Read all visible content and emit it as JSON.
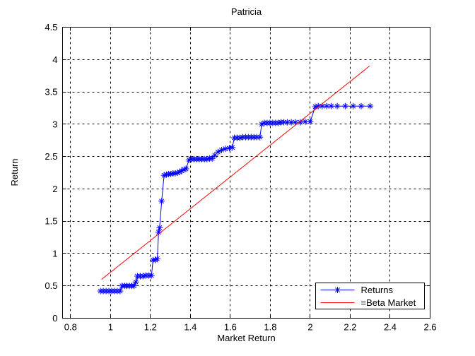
{
  "title": "Patricia",
  "chart_data": {
    "type": "line",
    "title": "Patricia",
    "xlabel": "Market Return",
    "ylabel": "Return",
    "xlim": [
      0.76,
      2.6
    ],
    "ylim": [
      0,
      4.5
    ],
    "xticks": [
      0.8,
      1.0,
      1.2,
      1.4,
      1.6,
      1.8,
      2.0,
      2.2,
      2.4,
      2.6
    ],
    "xtick_labels": [
      "0.8",
      "1",
      "1.2",
      "1.4",
      "1.6",
      "1.8",
      "2",
      "2.2",
      "2.4",
      "2.6"
    ],
    "yticks": [
      0,
      0.5,
      1.0,
      1.5,
      2.0,
      2.5,
      3.0,
      3.5,
      4.0,
      4.5
    ],
    "ytick_labels": [
      "0",
      "0.5",
      "1",
      "1.5",
      "2",
      "2.5",
      "3",
      "3.5",
      "4",
      "4.5"
    ],
    "grid": true,
    "legend_position": "lower-right",
    "series": [
      {
        "name": "Returns",
        "color": "#0000FF",
        "marker": "asterisk",
        "points": [
          [
            0.95,
            0.42
          ],
          [
            0.964,
            0.42
          ],
          [
            0.978,
            0.42
          ],
          [
            0.992,
            0.42
          ],
          [
            1.006,
            0.42
          ],
          [
            1.02,
            0.42
          ],
          [
            1.034,
            0.42
          ],
          [
            1.048,
            0.42
          ],
          [
            1.058,
            0.5
          ],
          [
            1.07,
            0.5
          ],
          [
            1.082,
            0.5
          ],
          [
            1.094,
            0.5
          ],
          [
            1.106,
            0.5
          ],
          [
            1.118,
            0.5
          ],
          [
            1.127,
            0.56
          ],
          [
            1.135,
            0.65
          ],
          [
            1.149,
            0.65
          ],
          [
            1.163,
            0.65
          ],
          [
            1.177,
            0.66
          ],
          [
            1.191,
            0.66
          ],
          [
            1.205,
            0.66
          ],
          [
            1.213,
            0.9
          ],
          [
            1.224,
            0.9
          ],
          [
            1.234,
            0.92
          ],
          [
            1.241,
            1.33
          ],
          [
            1.246,
            1.4
          ],
          [
            1.256,
            1.81
          ],
          [
            1.268,
            2.21
          ],
          [
            1.28,
            2.22
          ],
          [
            1.291,
            2.23
          ],
          [
            1.302,
            2.23
          ],
          [
            1.313,
            2.24
          ],
          [
            1.324,
            2.24
          ],
          [
            1.335,
            2.25
          ],
          [
            1.346,
            2.26
          ],
          [
            1.356,
            2.28
          ],
          [
            1.368,
            2.3
          ],
          [
            1.378,
            2.31
          ],
          [
            1.393,
            2.45
          ],
          [
            1.405,
            2.46
          ],
          [
            1.418,
            2.46
          ],
          [
            1.431,
            2.46
          ],
          [
            1.444,
            2.46
          ],
          [
            1.457,
            2.46
          ],
          [
            1.47,
            2.46
          ],
          [
            1.483,
            2.46
          ],
          [
            1.496,
            2.47
          ],
          [
            1.509,
            2.47
          ],
          [
            1.522,
            2.52
          ],
          [
            1.538,
            2.57
          ],
          [
            1.556,
            2.6
          ],
          [
            1.575,
            2.62
          ],
          [
            1.595,
            2.63
          ],
          [
            1.61,
            2.64
          ],
          [
            1.62,
            2.79
          ],
          [
            1.634,
            2.79
          ],
          [
            1.648,
            2.79
          ],
          [
            1.662,
            2.8
          ],
          [
            1.676,
            2.8
          ],
          [
            1.69,
            2.8
          ],
          [
            1.704,
            2.8
          ],
          [
            1.718,
            2.8
          ],
          [
            1.732,
            2.8
          ],
          [
            1.748,
            2.8
          ],
          [
            1.757,
            3.0
          ],
          [
            1.77,
            3.02
          ],
          [
            1.784,
            3.02
          ],
          [
            1.798,
            3.02
          ],
          [
            1.812,
            3.02
          ],
          [
            1.826,
            3.02
          ],
          [
            1.84,
            3.02
          ],
          [
            1.854,
            3.03
          ],
          [
            1.868,
            3.03
          ],
          [
            1.885,
            3.03
          ],
          [
            1.905,
            3.03
          ],
          [
            1.925,
            3.03
          ],
          [
            1.95,
            3.03
          ],
          [
            1.975,
            3.04
          ],
          [
            2.0,
            3.04
          ],
          [
            2.025,
            3.27
          ],
          [
            2.04,
            3.28
          ],
          [
            2.06,
            3.28
          ],
          [
            2.082,
            3.28
          ],
          [
            2.105,
            3.28
          ],
          [
            2.135,
            3.28
          ],
          [
            2.175,
            3.28
          ],
          [
            2.215,
            3.28
          ],
          [
            2.255,
            3.28
          ],
          [
            2.3,
            3.28
          ]
        ]
      },
      {
        "name": "=Beta Market",
        "color": "#FF0000",
        "marker": "none",
        "points": [
          [
            0.955,
            0.6
          ],
          [
            2.297,
            3.9
          ]
        ]
      }
    ]
  }
}
